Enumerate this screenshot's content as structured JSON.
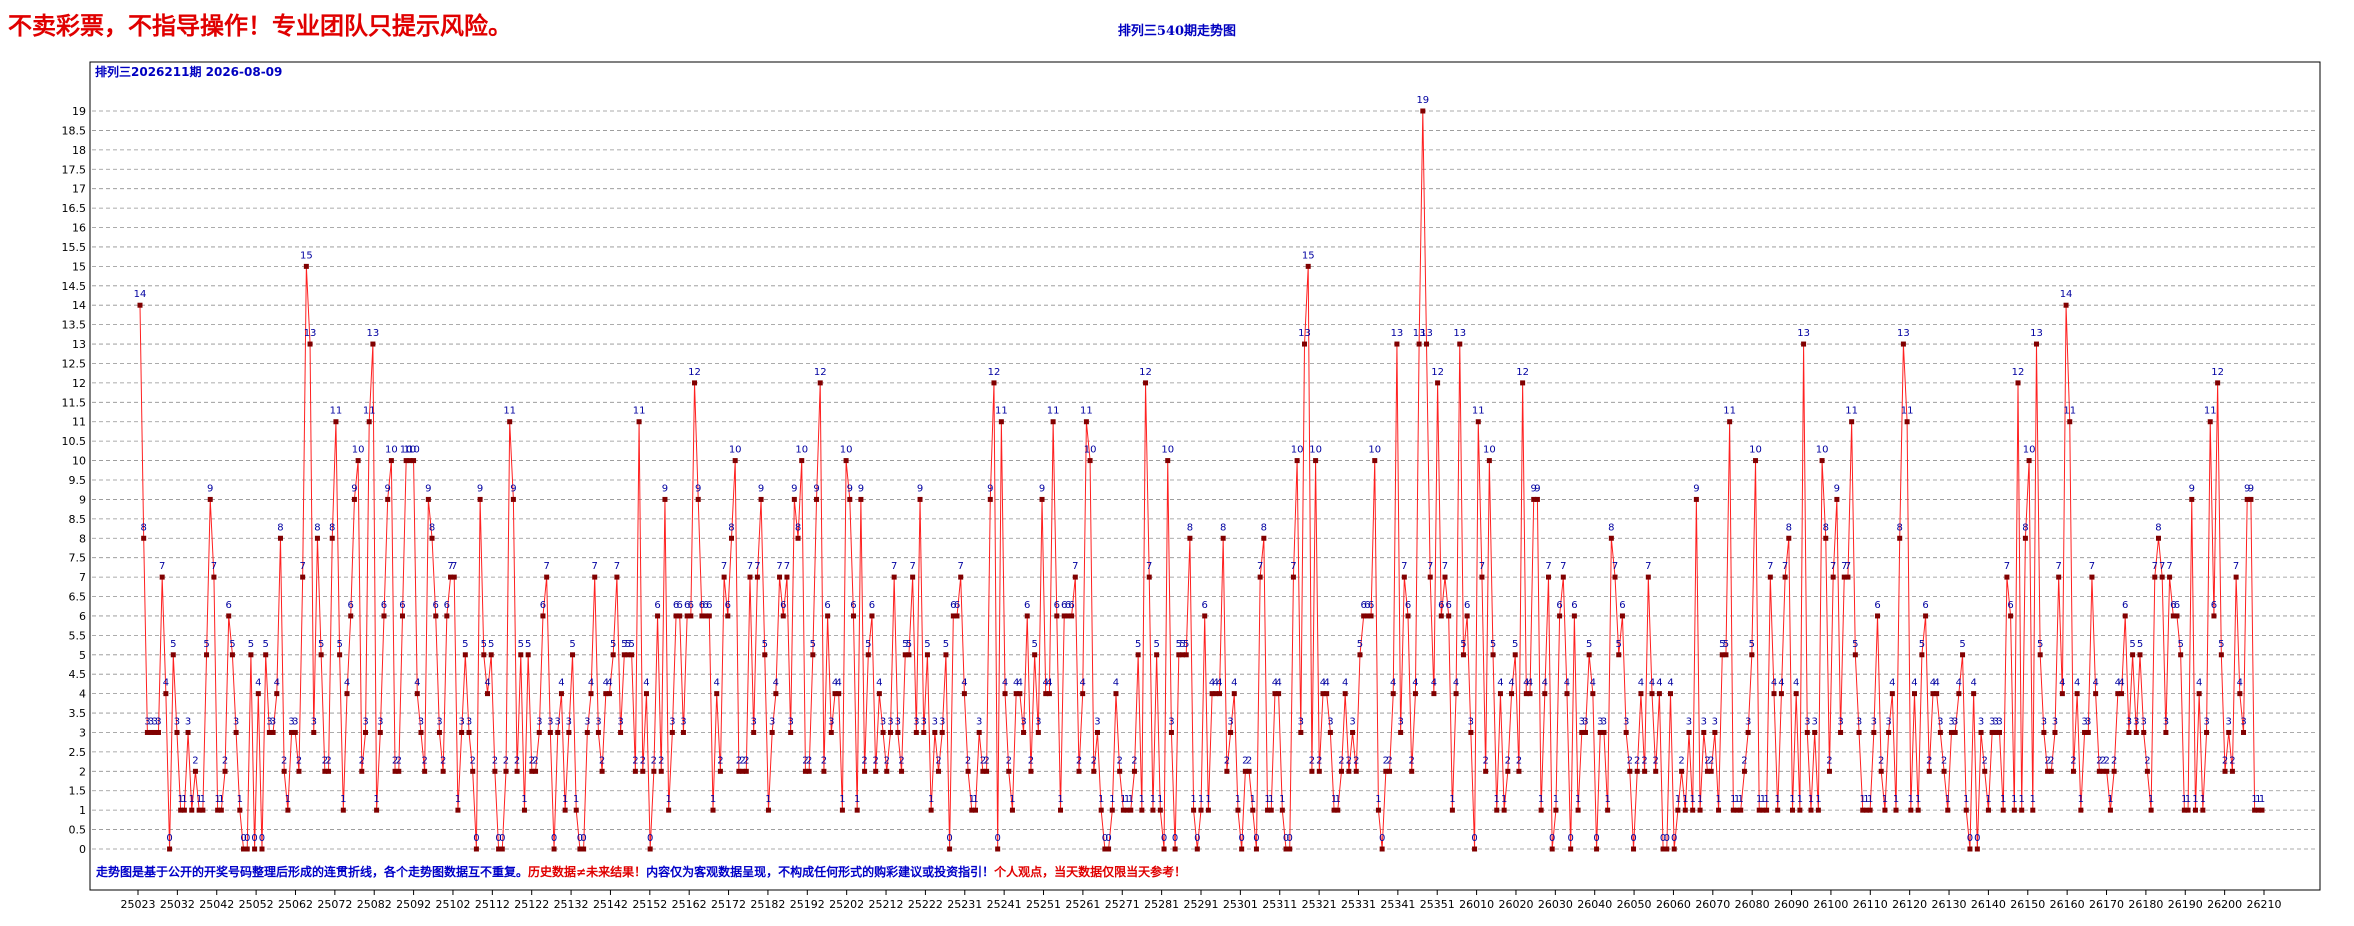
{
  "page": {
    "slogan": "不卖彩票，不指导操作！专业团队只提示风险。",
    "title": "排列三540期走势图"
  },
  "chart_data": {
    "type": "line",
    "inner_header": "排列三2026211期 2026-08-09",
    "disclaimer": [
      {
        "text": "走势图是基于公开的开奖号码整理后形成的连贯折线，各个走势图数据互不重复。",
        "color": "#0000c8"
      },
      {
        "text": "历史数据≠未来结果！",
        "color": "#e00000"
      },
      {
        "text": "内容仅为客观数据呈现，不构成任何形式的购彩建议或投资指引！",
        "color": "#0000c8"
      },
      {
        "text": "个人观点，当天数据仅限当天参考！",
        "color": "#e00000"
      }
    ],
    "ylim": [
      0,
      19
    ],
    "ytick_step": 0.5,
    "grid": true,
    "x_tick_labels": [
      "25023",
      "25032",
      "25042",
      "25052",
      "25062",
      "25072",
      "25082",
      "25092",
      "25102",
      "25112",
      "25122",
      "25132",
      "25142",
      "25152",
      "25162",
      "25172",
      "25182",
      "25192",
      "25202",
      "25212",
      "25222",
      "25231",
      "25241",
      "25251",
      "25261",
      "25271",
      "25281",
      "25291",
      "25301",
      "25311",
      "25321",
      "25331",
      "25341",
      "25351",
      "26010",
      "26020",
      "26030",
      "26040",
      "26050",
      "26060",
      "26070",
      "26080",
      "26090",
      "26100",
      "26110",
      "26120",
      "26130",
      "26140",
      "26150",
      "26160",
      "26170",
      "26180",
      "26190",
      "26200",
      "26210"
    ],
    "colors": {
      "line": "#ff2020",
      "marker": "#800000",
      "label": "#0000a0",
      "grid": "#909090"
    },
    "values": [
      14,
      8,
      3,
      3,
      3,
      3,
      7,
      4,
      0,
      5,
      3,
      1,
      1,
      3,
      1,
      2,
      1,
      1,
      5,
      9,
      7,
      1,
      1,
      2,
      6,
      5,
      3,
      1,
      0,
      0,
      5,
      0,
      4,
      0,
      5,
      3,
      3,
      4,
      8,
      2,
      1,
      3,
      3,
      2,
      7,
      15,
      13,
      3,
      8,
      5,
      2,
      2,
      8,
      11,
      5,
      1,
      4,
      6,
      9,
      10,
      2,
      3,
      11,
      13,
      1,
      3,
      6,
      9,
      10,
      2,
      2,
      6,
      10,
      10,
      10,
      4,
      3,
      2,
      9,
      8,
      6,
      3,
      2,
      6,
      7,
      7,
      1,
      3,
      5,
      3,
      2,
      0,
      9,
      5,
      4,
      5,
      2,
      0,
      0,
      2,
      11,
      9,
      2,
      5,
      1,
      5,
      2,
      2,
      3,
      6,
      7,
      3,
      0,
      3,
      4,
      1,
      3,
      5,
      1,
      0,
      0,
      3,
      4,
      7,
      3,
      2,
      4,
      4,
      5,
      7,
      3,
      5,
      5,
      5,
      2,
      11,
      2,
      4,
      0,
      2,
      6,
      2,
      9,
      1,
      3,
      6,
      6,
      3,
      6,
      6,
      12,
      9,
      6,
      6,
      6,
      1,
      4,
      2,
      7,
      6,
      8,
      10,
      2,
      2,
      2,
      7,
      3,
      7,
      9,
      5,
      1,
      3,
      4,
      7,
      6,
      7,
      3,
      9,
      8,
      10,
      2,
      2,
      5,
      9,
      12,
      2,
      6,
      3,
      4,
      4,
      1,
      10,
      9,
      6,
      1,
      9,
      2,
      5,
      6,
      2,
      4,
      3,
      2,
      3,
      7,
      3,
      2,
      5,
      5,
      7,
      3,
      9,
      3,
      5,
      1,
      3,
      2,
      3,
      5,
      0,
      6,
      6,
      7,
      4,
      2,
      1,
      1,
      3,
      2,
      2,
      9,
      12,
      0,
      11,
      4,
      2,
      1,
      4,
      4,
      3,
      6,
      2,
      5,
      3,
      9,
      4,
      4,
      11,
      6,
      1,
      6,
      6,
      6,
      7,
      2,
      4,
      11,
      10,
      2,
      3,
      1,
      0,
      0,
      1,
      4,
      2,
      1,
      1,
      1,
      2,
      5,
      1,
      12,
      7,
      1,
      5,
      1,
      0,
      10,
      3,
      0,
      5,
      5,
      5,
      8,
      1,
      0,
      1,
      6,
      1,
      4,
      4,
      4,
      8,
      2,
      3,
      4,
      1,
      0,
      2,
      2,
      1,
      0,
      7,
      8,
      1,
      1,
      4,
      4,
      1,
      0,
      0,
      7,
      10,
      3,
      13,
      15,
      2,
      10,
      2,
      4,
      4,
      3,
      1,
      1,
      2,
      4,
      2,
      3,
      2,
      5,
      6,
      6,
      6,
      10,
      1,
      0,
      2,
      2,
      4,
      13,
      3,
      7,
      6,
      2,
      4,
      13,
      19,
      13,
      7,
      4,
      12,
      6,
      7,
      6,
      1,
      4,
      13,
      5,
      6,
      3,
      0,
      11,
      7,
      2,
      10,
      5,
      1,
      4,
      1,
      2,
      4,
      5,
      2,
      12,
      4,
      4,
      9,
      9,
      1,
      4,
      7,
      0,
      1,
      6,
      7,
      4,
      0,
      6,
      1,
      3,
      3,
      5,
      4,
      0,
      3,
      3,
      1,
      8,
      7,
      5,
      6,
      3,
      2,
      0,
      2,
      4,
      2,
      7,
      4,
      2,
      4,
      0,
      0,
      4,
      0,
      1,
      2,
      1,
      3,
      1,
      9,
      1,
      3,
      2,
      2,
      3,
      1,
      5,
      5,
      11,
      1,
      1,
      1,
      2,
      3,
      5,
      10,
      1,
      1,
      1,
      7,
      4,
      1,
      4,
      7,
      8,
      1,
      4,
      1,
      13,
      3,
      1,
      3,
      1,
      10,
      8,
      2,
      7,
      9,
      3,
      7,
      7,
      11,
      5,
      3,
      1,
      1,
      1,
      3,
      6,
      2,
      1,
      3,
      4,
      1,
      8,
      13,
      11,
      1,
      4,
      1,
      5,
      6,
      2,
      4,
      4,
      3,
      2,
      1,
      3,
      3,
      4,
      5,
      1,
      0,
      4,
      0,
      3,
      2,
      1,
      3,
      3,
      3,
      1,
      7,
      6,
      1,
      12,
      1,
      8,
      10,
      1,
      13,
      5,
      3,
      2,
      2,
      3,
      7,
      4,
      14,
      11,
      2,
      4,
      1,
      3,
      3,
      7,
      4,
      2,
      2,
      2,
      1,
      2,
      4,
      4,
      6,
      3,
      5,
      3,
      5,
      3,
      2,
      1,
      7,
      8,
      7,
      3,
      7,
      6,
      6,
      5,
      1,
      1,
      9,
      1,
      4,
      1,
      3,
      11,
      6,
      12,
      5,
      2,
      3,
      2,
      7,
      4,
      3,
      9,
      9,
      1,
      1,
      1
    ],
    "x_range_labels": [
      25023,
      26211
    ]
  }
}
